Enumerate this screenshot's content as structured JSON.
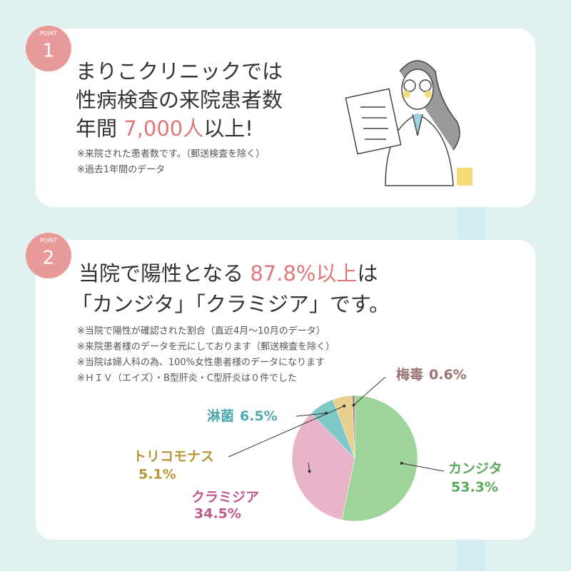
{
  "point1": {
    "badge": "POINT",
    "number": "1",
    "lines": [
      "まりこクリニックでは",
      "性病検査の来院患者数"
    ],
    "line3": [
      "年間 ",
      "7,000人",
      "以上!"
    ],
    "notes": [
      "※来院された患者数です。（郵送検査を除く）",
      "※過去1年間のデータ"
    ]
  },
  "point2": {
    "badge": "POINT",
    "number": "2",
    "line1": [
      "当院で陽性となる ",
      "87.8%以上",
      "は"
    ],
    "line2": "「カンジタ」「クラミジア」です。",
    "notes": [
      "※当院で陽性が確認された割合（直近4月〜10月のデータ）",
      "※来院患者様のデータを元にしております（郵送検査を除く）",
      "※当院は婦人科の為、100%女性患者様のデータになります",
      "※ＨＩＶ（エイズ）・B型肝炎・C型肝炎は０件でした"
    ]
  },
  "chart_data": {
    "type": "pie",
    "categories": [
      "カンジタ",
      "クラミジア",
      "淋菌",
      "トリコモナス",
      "梅毒"
    ],
    "values": [
      53.3,
      34.5,
      6.5,
      5.1,
      0.6
    ],
    "value_labels": [
      "53.3%",
      "34.5%",
      "6.5%",
      "5.1%",
      "0.6%"
    ],
    "colors": [
      "#9ed39a",
      "#e8b4c9",
      "#7ec8c8",
      "#e8cf8e",
      "#a07a7a"
    ],
    "label_colors": [
      "#5aa85a",
      "#c0588a",
      "#4eaab0",
      "#b8963a",
      "#9a7373"
    ]
  }
}
